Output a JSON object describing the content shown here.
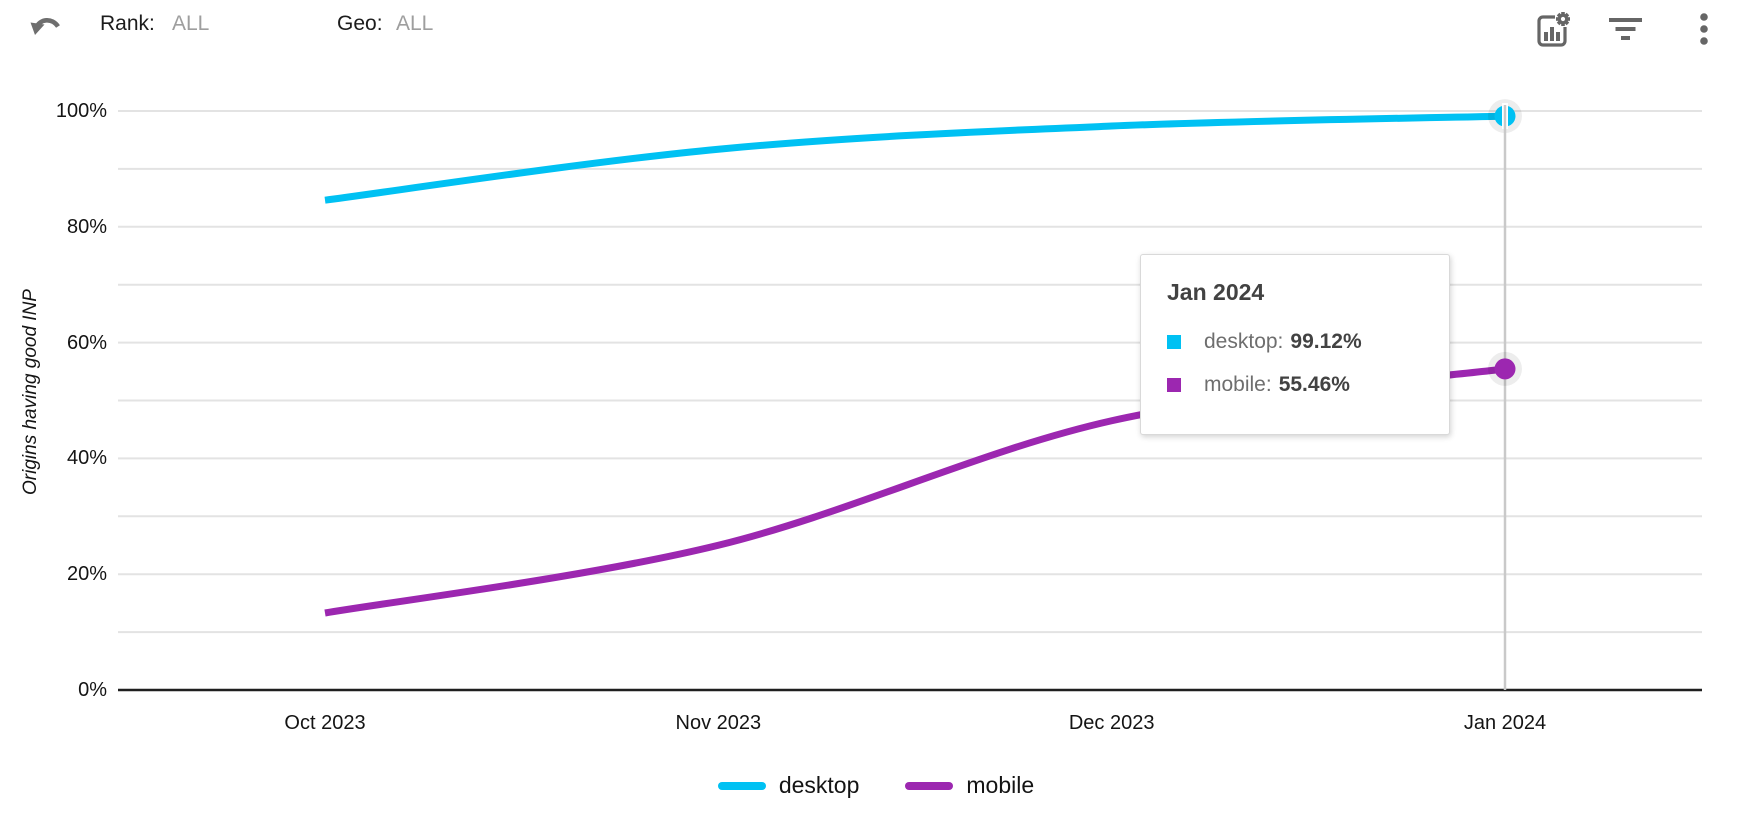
{
  "header": {
    "rank": {
      "label": "Rank:",
      "value": "ALL"
    },
    "geo": {
      "label": "Geo:",
      "value": "ALL"
    },
    "icons": [
      "undo-arrow-icon",
      "chart-settings-icon",
      "filter-icon",
      "kebab-menu-icon"
    ]
  },
  "chart_data": {
    "type": "line",
    "title": "",
    "xlabel": "",
    "ylabel": "Origins having good INP",
    "categories": [
      "Oct 2023",
      "Nov 2023",
      "Dec 2023",
      "Jan 2024"
    ],
    "series": [
      {
        "name": "desktop",
        "color": "#00c1f3",
        "values": [
          84.6,
          93.4,
          97.4,
          99.12
        ]
      },
      {
        "name": "mobile",
        "color": "#9c27b0",
        "values": [
          13.3,
          25.0,
          46.5,
          55.46
        ]
      }
    ],
    "ylim": [
      0,
      100
    ],
    "ytick_major_step": 20,
    "grid_step": 10,
    "ytick_format": "percent",
    "grid": true,
    "legend_position": "bottom",
    "highlight": {
      "category": "Jan 2024",
      "index": 3
    }
  },
  "tooltip": {
    "title": "Jan 2024",
    "rows": [
      {
        "label": "desktop:",
        "value": "99.12%",
        "color": "#00c1f3"
      },
      {
        "label": "mobile:",
        "value": "55.46%",
        "color": "#9c27b0"
      }
    ]
  },
  "legend": {
    "items": [
      {
        "label": "desktop",
        "color": "#00c1f3"
      },
      {
        "label": "mobile",
        "color": "#9c27b0"
      }
    ]
  },
  "colors": {
    "desktop": "#00c1f3",
    "mobile": "#9c27b0",
    "gridline": "#e3e3e3",
    "axis": "#1f1f1f",
    "crosshair": "#c9c9c9",
    "icon_gray": "#666666",
    "muted_text": "#9e9e9e"
  }
}
